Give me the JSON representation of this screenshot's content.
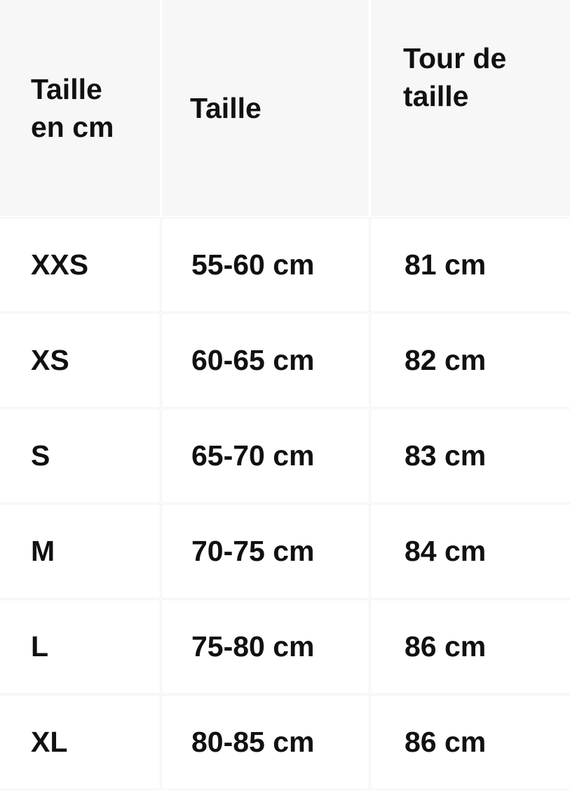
{
  "header": [
    "Taille en cm",
    "Taille",
    "Tour de taille"
  ],
  "rows": [
    [
      "XXS",
      "55-60 cm",
      "81 cm"
    ],
    [
      "XS",
      "60-65 cm",
      "82 cm"
    ],
    [
      "S",
      "65-70 cm",
      "83 cm"
    ],
    [
      "M",
      "70-75 cm",
      "84 cm"
    ],
    [
      "L",
      "75-80 cm",
      "86 cm"
    ],
    [
      "XL",
      "80-85 cm",
      "86 cm"
    ]
  ]
}
